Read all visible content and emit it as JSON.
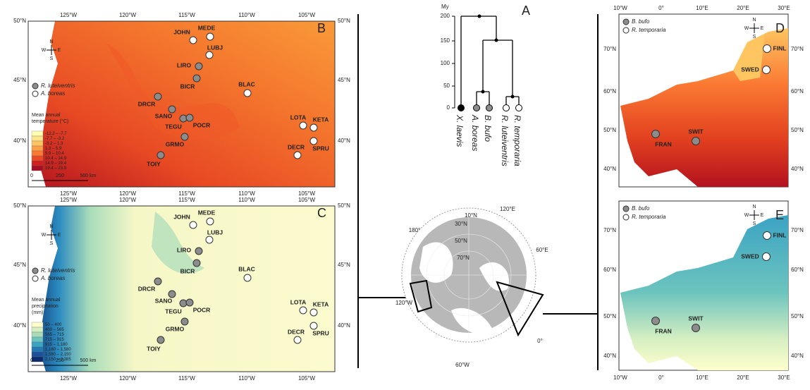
{
  "panel_a": {
    "label": "A",
    "axis_title": "My",
    "ticks": [
      "200",
      "150",
      "100",
      "50",
      "0"
    ],
    "taxa": [
      "X. laevis",
      "A. boreas",
      "B. bufo",
      "R. luteiventris",
      "R. temporaria"
    ]
  },
  "compass": {
    "n": "N",
    "s": "S",
    "e": "E",
    "w": "W"
  },
  "north_america": {
    "lon_ticks": [
      "125°W",
      "120°W",
      "115°W",
      "110°W",
      "105°W"
    ],
    "lat_ticks": [
      "50°N",
      "45°N",
      "40°N"
    ],
    "legend": [
      {
        "name": "R. luteiventris",
        "color": "#8c8c8c",
        "sites": [
          "LIRO",
          "BICR",
          "DRCR",
          "SANO",
          "TEGU",
          "POCR",
          "GRMO",
          "TOIY"
        ]
      },
      {
        "name": "A. boreas",
        "color": "#ffffff",
        "sites": [
          "JOHN",
          "MEDE",
          "LUBJ",
          "BLAC",
          "LOTA",
          "KETA",
          "DECR",
          "SPRU"
        ]
      }
    ],
    "scale": [
      "0",
      "250",
      "500 km"
    ],
    "panel_b": {
      "label": "B",
      "legend_title": [
        "Mean annual",
        "temperature (°C)"
      ],
      "classes": [
        {
          "label": "-12.2 – -7.7",
          "color": "#ffffb2"
        },
        {
          "label": "-7.7 – -3.2",
          "color": "#fee48a"
        },
        {
          "label": "-3.2 – 1.3",
          "color": "#fec560"
        },
        {
          "label": "1.3 – 5.9",
          "color": "#fd9f44"
        },
        {
          "label": "5.9 – 10.4",
          "color": "#fb7a33"
        },
        {
          "label": "10.4 – 14.9",
          "color": "#ec4a25"
        },
        {
          "label": "14.9 – 19.4",
          "color": "#d01f1f"
        },
        {
          "label": "19.4 – 23.9",
          "color": "#a50f23"
        }
      ]
    },
    "panel_c": {
      "label": "C",
      "legend_title": [
        "Mean annual",
        "precipitation",
        "(mm)"
      ],
      "classes": [
        {
          "label": "50 – 400",
          "color": "#ffffcc"
        },
        {
          "label": "400 – 565",
          "color": "#d6efc2"
        },
        {
          "label": "565 – 715",
          "color": "#a8dcb9"
        },
        {
          "label": "715 – 915",
          "color": "#6cc4be"
        },
        {
          "label": "915 – 1,180",
          "color": "#3ba3c3"
        },
        {
          "label": "1,180 – 1,580",
          "color": "#2479b5"
        },
        {
          "label": "1,580 – 2,150",
          "color": "#1d4f9a"
        },
        {
          "label": "2,150 – 3,385",
          "color": "#0c2c6e"
        }
      ]
    }
  },
  "globe": {
    "labels": [
      "10°N",
      "30°N",
      "50°N",
      "70°N",
      "120°E",
      "180°",
      "60°E",
      "120°W",
      "60°W",
      "0°"
    ]
  },
  "europe": {
    "lon_ticks": [
      "10°W",
      "0°",
      "10°E",
      "20°E",
      "30°E"
    ],
    "lat_ticks": [
      "70°N",
      "60°N",
      "50°N",
      "40°N"
    ],
    "legend": [
      {
        "name": "B. bufo",
        "color": "#8c8c8c",
        "sites": [
          "FRAN",
          "SWIT"
        ]
      },
      {
        "name": "R. temporaria",
        "color": "#ffffff",
        "sites": [
          "FINL",
          "SWED"
        ]
      }
    ],
    "panel_d": {
      "label": "D"
    },
    "panel_e": {
      "label": "E"
    }
  }
}
